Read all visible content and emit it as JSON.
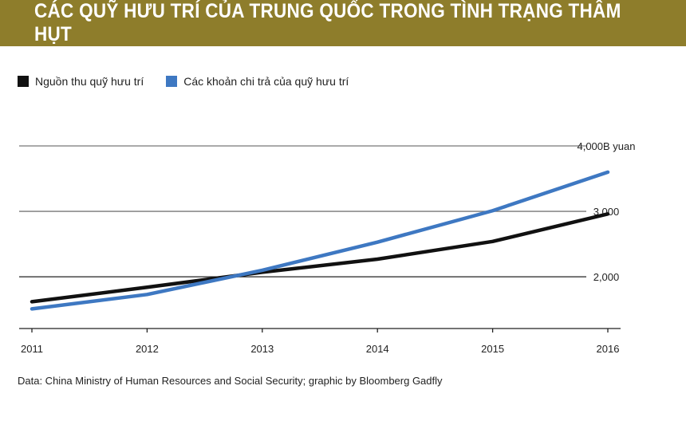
{
  "title": "CÁC QUỸ HƯU TRÍ CỦA TRUNG QUỐC TRONG TÌNH TRẠNG THÂM HỤT",
  "legend": [
    {
      "label": "Nguồn thu quỹ hưu trí",
      "color": "#111111"
    },
    {
      "label": "Các khoản chi trả của quỹ hưu trí",
      "color": "#3e78c2"
    }
  ],
  "source": "Data: China Ministry of Human Resources and Social Security; graphic by Bloomberg Gadfly",
  "chart_data": {
    "type": "line",
    "x": [
      "2011",
      "2012",
      "2013",
      "2014",
      "2015",
      "2016"
    ],
    "series": [
      {
        "name": "Nguồn thu quỹ hưu trí",
        "color": "#111111",
        "values": [
          1620,
          1840,
          2070,
          2270,
          2540,
          2960
        ]
      },
      {
        "name": "Các khoản chi trả của quỹ hưu trí",
        "color": "#3e78c2",
        "values": [
          1510,
          1730,
          2100,
          2530,
          3010,
          3600
        ]
      }
    ],
    "y_ticks": [
      {
        "value": 2000,
        "label": "2,000"
      },
      {
        "value": 3000,
        "label": "3,000"
      },
      {
        "value": 4000,
        "label": "4,000B yuan"
      }
    ],
    "ylim": [
      1210,
      4000
    ],
    "grid": true
  }
}
